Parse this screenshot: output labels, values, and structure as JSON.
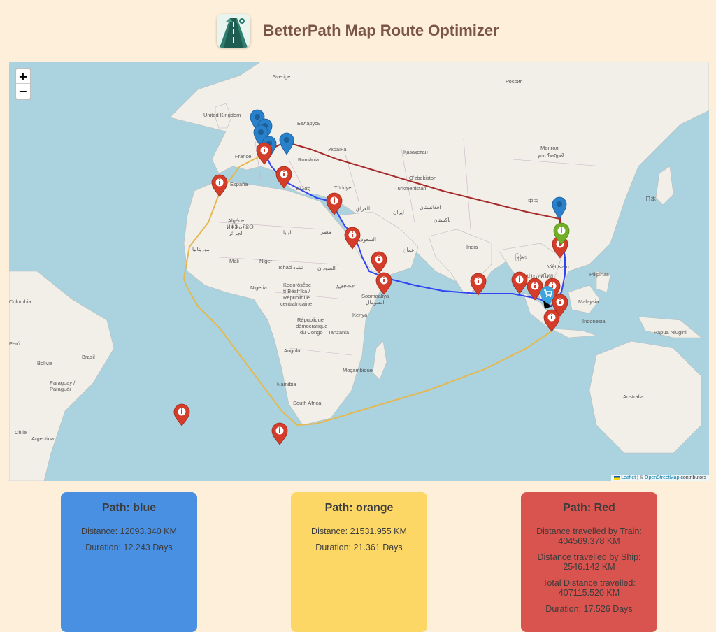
{
  "header": {
    "title": "BetterPath Map Route Optimizer"
  },
  "map": {
    "zoom_in": "+",
    "zoom_out": "−",
    "attribution": {
      "leaflet": "Leaflet",
      "separator": " | © ",
      "osm": "OpenStreetMap",
      "suffix": " contributors"
    },
    "labels": {
      "sverige": "Sverige",
      "rossiya": "Россия",
      "united_kingdom": "United Kingdom",
      "belarus": "Беларусь",
      "ukraina": "Україна",
      "kazakhstan": "Қазақстан",
      "mongolia": "Монгол",
      "mongolia2": "улс ᠮᠣᠩᠭᠣᠯ",
      "france": "France",
      "romania": "România",
      "uzbekistan": "Oʻzbekiston",
      "turkiye": "Türkiye",
      "turkmenistan": "Türkmenistan",
      "espana": "España",
      "ellada": "Ελλάς",
      "china": "中国",
      "japan": "日本",
      "iraq": "العراق",
      "iran": "ایران",
      "afghanistan": "افغانستان",
      "pakistan": "پاکستان",
      "algerie": "Algérie",
      "algerie2": "ⵍⵣⵣⴰⵢⴻⵔ",
      "algerie3": "الجزائر",
      "libya": "ليبيا",
      "misr": "مصر",
      "saudi": "السعودية",
      "oman": "عمان",
      "india": "India",
      "myanmar": "မြန်မာ",
      "mauritania": "موريتانيا",
      "mali": "Mali",
      "niger": "Niger",
      "tchad": "Tchad تشاد",
      "sudan": "السودان",
      "vietnam": "Việt Nam",
      "pilipinas": "Pilipinas",
      "nigeria": "Nigeria",
      "kodorosese": "Kodorösêse",
      "kodorosese2": "tî Bêafrîka /",
      "kodorosese3": "République",
      "kodorosese4": "centrafricaine",
      "ethiopia": "ኢትዮጵያ",
      "somalia": "Soomaaliya",
      "somalia2": "الصومال",
      "thailand": "ประเทศไทย",
      "malaysia": "Malaysia",
      "colombia": "Colombia",
      "rdc": "République",
      "rdc2": "démocratique",
      "rdc3": "du Congo",
      "kenya": "Kenya",
      "tanzania": "Tanzania",
      "indonesia": "Indonesia",
      "papua": "Papua Niugini",
      "peru": "Perú",
      "angola": "Angola",
      "brasil": "Brasil",
      "bolivia": "Bolivia",
      "mocambique": "Moçambique",
      "paraguay": "Paraguay /",
      "paraguay2": "Paraguái",
      "namibia": "Namibia",
      "australia": "Australia",
      "south_africa": "South Africa",
      "chile": "Chile",
      "argentina": "Argentina"
    },
    "marker_icons": {
      "red": "info-marker-red",
      "blue": "location-pin-blue",
      "green": "info-marker-green",
      "cart": "shopping-cart-marker"
    },
    "route_colors": {
      "blue": "#3044f2",
      "orange": "#e5b84f",
      "red": "#a52a2a"
    }
  },
  "cards": {
    "blue": {
      "title": "Path: blue",
      "distance": "Distance: 12093.340 KM",
      "duration": "Duration: 12.243 Days"
    },
    "orange": {
      "title": "Path: orange",
      "distance": "Distance: 21531.955 KM",
      "duration": "Duration: 21.361 Days"
    },
    "red": {
      "title": "Path: Red",
      "train": "Distance travelled by Train: 404569.378 KM",
      "ship": "Distance travelled by Ship: 2546.142 KM",
      "total": "Total Distance travelled: 407115.520 KM",
      "duration": "Duration: 17.526 Days"
    }
  }
}
